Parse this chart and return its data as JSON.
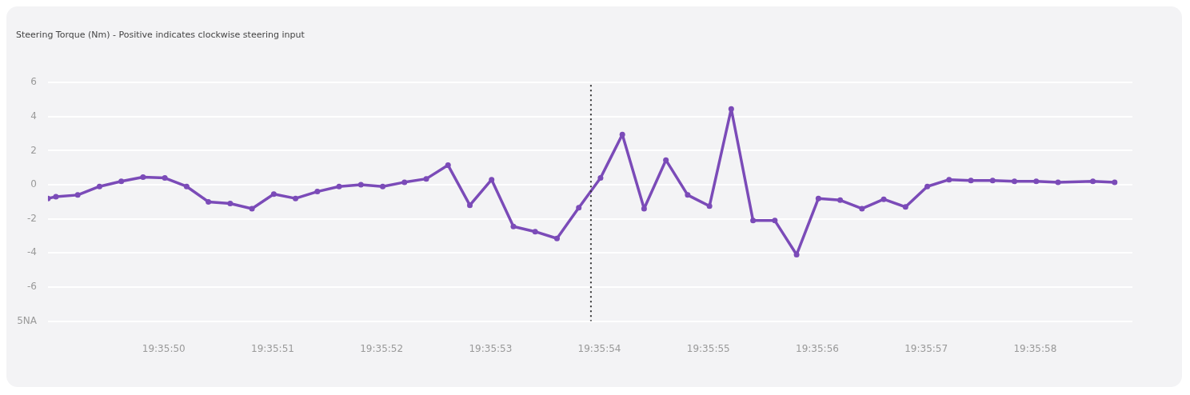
{
  "chart_data": {
    "type": "line",
    "title": "Steering Torque (Nm) - Positive indicates clockwise steering input",
    "x": [
      19.5969269,
      19.5969472,
      19.5970028,
      19.5970583,
      19.5971139,
      19.5971694,
      19.597225,
      19.5972806,
      19.5973361,
      19.5973917,
      19.5974472,
      19.5975028,
      19.5975583,
      19.5976139,
      19.5976694,
      19.597725,
      19.5977806,
      19.5978361,
      19.5978917,
      19.5979472,
      19.5980028,
      19.5980583,
      19.5981139,
      19.5981694,
      19.598225,
      19.5982806,
      19.5983361,
      19.5983917,
      19.5984472,
      19.5985028,
      19.5985583,
      19.5986139,
      19.5986694,
      19.598725,
      19.5987806,
      19.5988361,
      19.5988917,
      19.5989472,
      19.5990028,
      19.5990583,
      19.5991139,
      19.5991694,
      19.599225,
      19.5992806,
      19.5993361,
      19.5993917,
      19.5994472,
      19.5995028,
      19.5995917,
      19.5996472
    ],
    "series": [
      {
        "color": "#7b4bb8",
        "values": [
          -0.8,
          -0.7,
          -0.6,
          -0.1,
          0.2,
          0.45,
          0.4,
          -0.1,
          -1.0,
          -1.1,
          -1.4,
          -0.55,
          -0.8,
          -0.4,
          -0.1,
          0.0,
          -0.1,
          0.15,
          0.35,
          1.15,
          -1.2,
          0.3,
          -2.45,
          -2.75,
          -3.15,
          -1.35,
          0.4,
          2.95,
          -1.4,
          1.45,
          -0.6,
          -1.25,
          4.45,
          -2.1,
          -2.1,
          -4.1,
          -0.8,
          -0.9,
          -1.4,
          -0.85,
          -1.3,
          -0.1,
          0.3,
          0.25,
          0.25,
          0.2,
          0.2,
          0.15,
          0.2,
          0.15
        ]
      }
    ],
    "xlim": [
      19.5969269,
      19.5996925
    ],
    "xticks": [
      {
        "value": 19.5972222,
        "label": "19:35:50"
      },
      {
        "value": 19.5975,
        "label": "19:35:51"
      },
      {
        "value": 19.5977778,
        "label": "19:35:52"
      },
      {
        "value": 19.5980556,
        "label": "19:35:53"
      },
      {
        "value": 19.5983333,
        "label": "19:35:54"
      },
      {
        "value": 19.5986111,
        "label": "19:35:55"
      },
      {
        "value": 19.5988889,
        "label": "19:35:56"
      },
      {
        "value": 19.5991667,
        "label": "19:35:57"
      },
      {
        "value": 19.5994444,
        "label": "19:35:58"
      }
    ],
    "ylim": [
      -8,
      6
    ],
    "yticks": [
      6,
      4,
      2,
      0,
      -2,
      -4,
      -6,
      {
        "value": -8,
        "label": null
      }
    ],
    "annotations": [
      "5NA"
    ],
    "ref_lines": [
      {
        "axis": "x",
        "value": 19.5983116,
        "color": "#333333",
        "line_style": "dotted"
      }
    ],
    "grid": "y",
    "legend": false,
    "marker": "circle",
    "line_style": "solid"
  }
}
